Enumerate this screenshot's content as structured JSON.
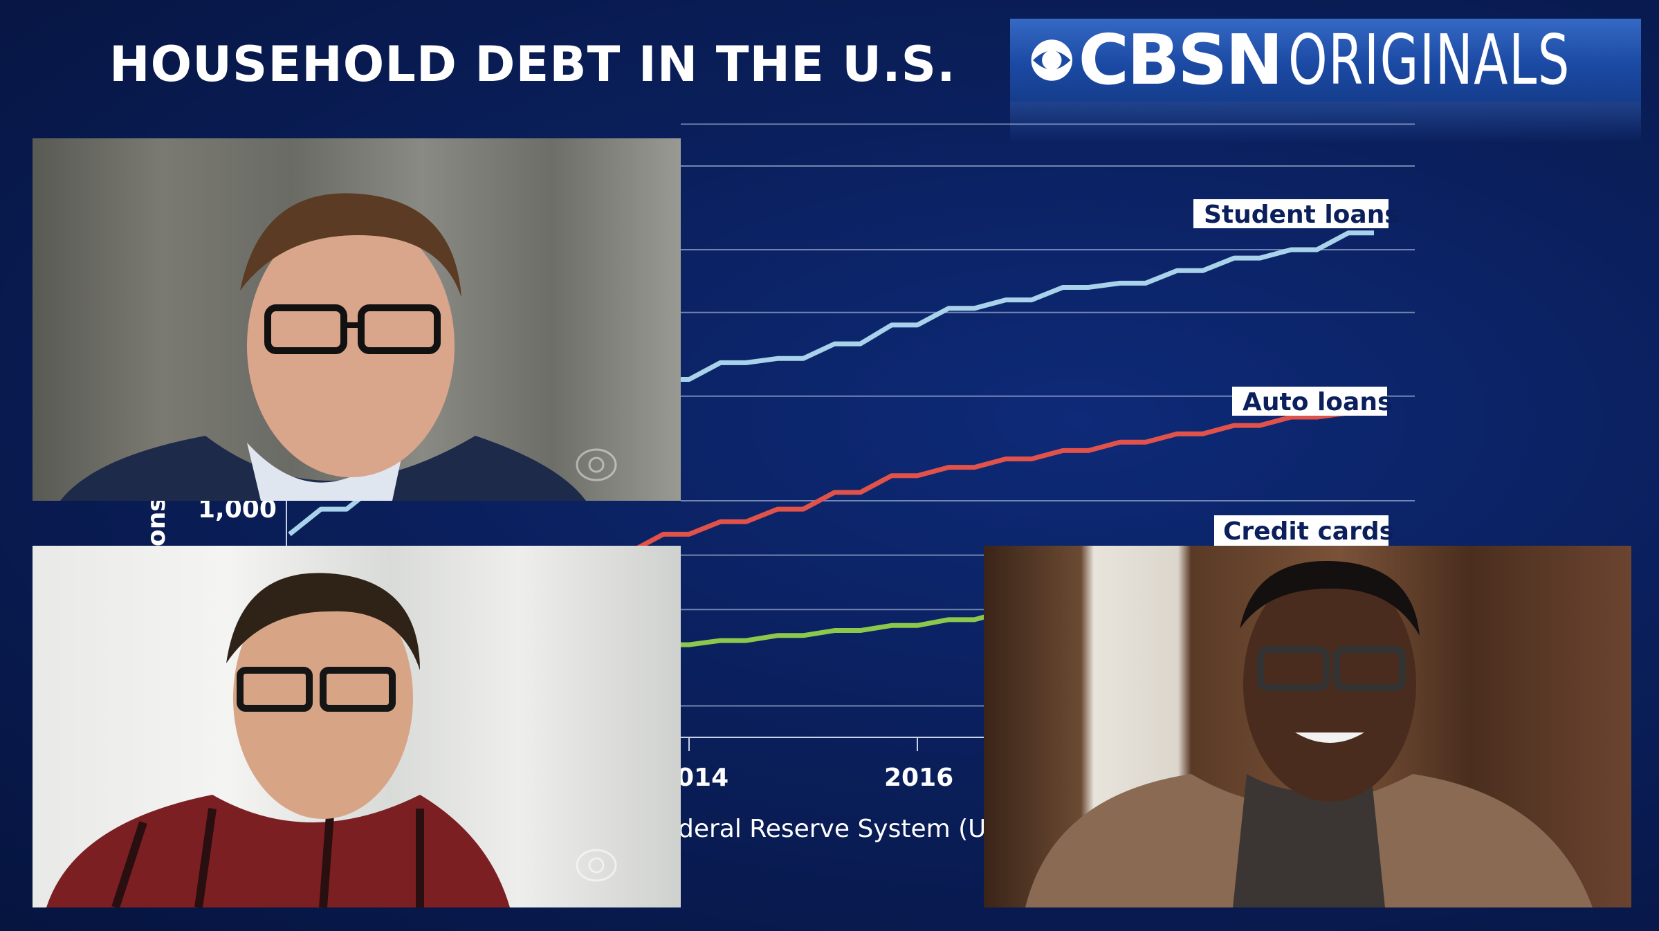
{
  "title": "HOUSEHOLD DEBT IN THE U.S.",
  "logo": {
    "part1": "CBSN",
    "part2": "ORIGINALS"
  },
  "colors": {
    "student_loans": "#a9d3ea",
    "auto_loans": "#e0524a",
    "credit_cards": "#8cc84b",
    "background": "#0a1f5c"
  },
  "chart_data": {
    "type": "line",
    "title": "HOUSEHOLD DEBT IN THE U.S.",
    "ylabel_visible_fragment": "ons",
    "ytick_visible": [
      "1,000"
    ],
    "xtick_visible": [
      "014",
      "2016"
    ],
    "source_visible_fragment": "deral Reserve System (US",
    "series": [
      {
        "name": "Student loans",
        "x": [
          2010.5,
          2011,
          2011.5,
          2012,
          2012.5,
          2013,
          2013.5,
          2014,
          2014.5,
          2015,
          2015.5,
          2016,
          2016.5,
          2017,
          2017.5,
          2018,
          2018.5,
          2019,
          2019.5,
          2020
        ],
        "values": [
          920,
          980,
          1040,
          1100,
          1150,
          1200,
          1240,
          1290,
          1330,
          1340,
          1375,
          1420,
          1460,
          1480,
          1510,
          1520,
          1550,
          1580,
          1600,
          1640
        ]
      },
      {
        "name": "Auto loans",
        "x": [
          2012.5,
          2013,
          2013.5,
          2014,
          2014.5,
          2015,
          2015.5,
          2016,
          2016.5,
          2017,
          2017.5,
          2018,
          2018.5,
          2019,
          2019.5,
          2020
        ],
        "values": [
          800,
          840,
          880,
          920,
          950,
          980,
          1020,
          1060,
          1080,
          1100,
          1120,
          1140,
          1160,
          1180,
          1200,
          1210
        ]
      },
      {
        "name": "Credit cards",
        "x": [
          2013,
          2013.5,
          2014,
          2014.5,
          2015,
          2015.5,
          2016,
          2016.5,
          2017
        ],
        "values": [
          640,
          648,
          656,
          666,
          678,
          690,
          702,
          716,
          736
        ]
      }
    ],
    "grid": true,
    "legend": "inline labels at line ends (right)"
  }
}
